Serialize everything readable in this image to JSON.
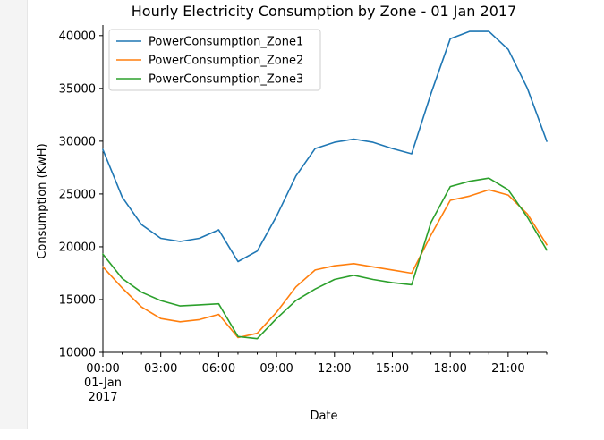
{
  "chart_data": {
    "type": "line",
    "title": "Hourly Electricity Consumption by Zone - 01 Jan 2017",
    "xlabel": "Date",
    "ylabel": "Consumption (KwH)",
    "ylim": [
      10000,
      41000
    ],
    "yticks": [
      10000,
      15000,
      20000,
      25000,
      30000,
      35000,
      40000
    ],
    "x": [
      0,
      1,
      2,
      3,
      4,
      5,
      6,
      7,
      8,
      9,
      10,
      11,
      12,
      13,
      14,
      15,
      16,
      17,
      18,
      19,
      20,
      21,
      22,
      23
    ],
    "xlim": [
      0,
      23
    ],
    "xticks": [
      {
        "hour": 0,
        "label": "00:00",
        "sub1": "01-Jan",
        "sub2": "2017"
      },
      {
        "hour": 3,
        "label": "03:00"
      },
      {
        "hour": 6,
        "label": "06:00"
      },
      {
        "hour": 9,
        "label": "09:00"
      },
      {
        "hour": 12,
        "label": "12:00"
      },
      {
        "hour": 15,
        "label": "15:00"
      },
      {
        "hour": 18,
        "label": "18:00"
      },
      {
        "hour": 21,
        "label": "21:00"
      }
    ],
    "grid": false,
    "legend_position": "top-left",
    "series": [
      {
        "name": "PowerConsumption_Zone1",
        "color": "#1f77b4",
        "values": [
          29200,
          24700,
          22100,
          20800,
          20500,
          20800,
          21600,
          18600,
          19600,
          22900,
          26700,
          29300,
          29900,
          30200,
          29900,
          29300,
          28800,
          34500,
          39700,
          40400,
          40400,
          38700,
          35000,
          30000
        ]
      },
      {
        "name": "PowerConsumption_Zone2",
        "color": "#ff7f0e",
        "values": [
          18100,
          16100,
          14300,
          13200,
          12900,
          13100,
          13600,
          11400,
          11800,
          13800,
          16200,
          17800,
          18200,
          18400,
          18100,
          17800,
          17500,
          21100,
          24400,
          24800,
          25400,
          24900,
          23100,
          20200
        ]
      },
      {
        "name": "PowerConsumption_Zone3",
        "color": "#2ca02c",
        "values": [
          19300,
          17000,
          15700,
          14900,
          14400,
          14500,
          14600,
          11500,
          11300,
          13200,
          14900,
          16000,
          16900,
          17300,
          16900,
          16600,
          16400,
          22300,
          25700,
          26200,
          26500,
          25400,
          22800,
          19700
        ]
      }
    ]
  }
}
